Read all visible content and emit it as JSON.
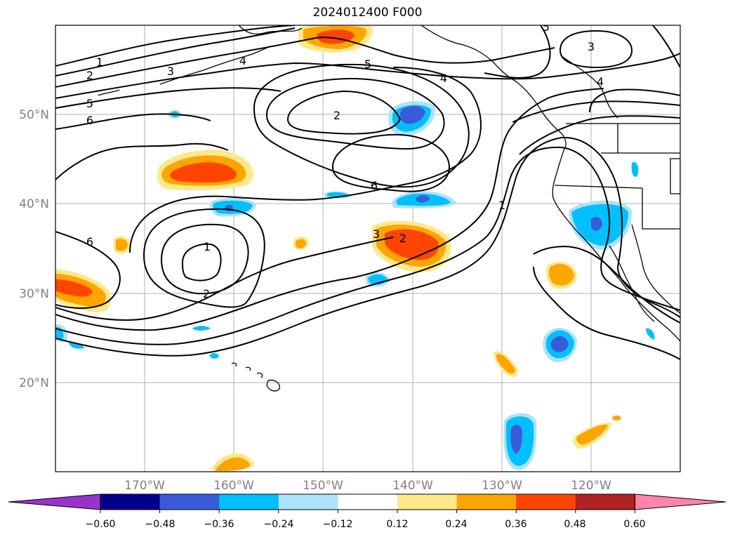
{
  "title": "2024012400 F000",
  "map": {
    "lat_labels": [
      "50°N",
      "40°N",
      "30°N",
      "20°N"
    ],
    "lon_labels": [
      "170°W",
      "160°W",
      "150°W",
      "140°W",
      "130°W",
      "120°W"
    ],
    "lon_range": [
      -180,
      -110
    ],
    "lat_range": [
      10,
      60
    ],
    "gridlines": true
  },
  "colorbar": {
    "ticks": [
      "−0.60",
      "−0.48",
      "−0.36",
      "−0.24",
      "−0.12",
      "0.12",
      "0.24",
      "0.36",
      "0.48",
      "0.60"
    ],
    "colors": [
      "#9932cc",
      "#00008b",
      "#3a5bd9",
      "#00bfff",
      "#ade3fa",
      "#ffffff",
      "#ffe88a",
      "#ffa500",
      "#ff4500",
      "#b22222",
      "#ff85a8"
    ]
  },
  "contour_labels": [
    "1",
    "2",
    "3",
    "4",
    "5",
    "6"
  ],
  "colors": {
    "land_outline": "#000000",
    "grid": "#b0b0b0",
    "tick_label": "#808080"
  }
}
